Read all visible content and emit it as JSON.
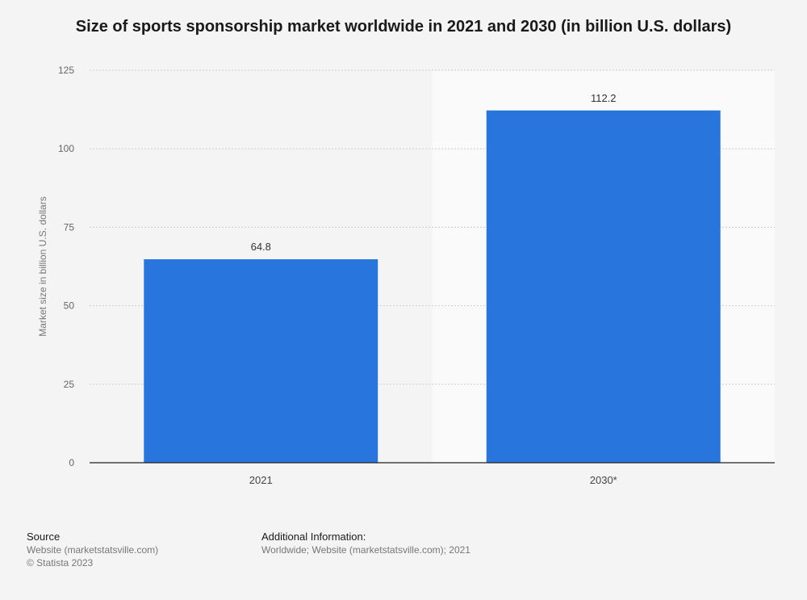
{
  "chart_data": {
    "type": "bar",
    "title": "Size of sports sponsorship market worldwide in 2021 and 2030 (in billion U.S. dollars)",
    "xlabel": "",
    "ylabel": "Market size in billion U.S. dollars",
    "categories": [
      "2021",
      "2030*"
    ],
    "values": [
      64.8,
      112.2
    ],
    "data_labels": [
      "64.8",
      "112.2"
    ],
    "ylim": [
      0,
      125
    ],
    "yticks": [
      0,
      25,
      50,
      75,
      100,
      125
    ],
    "grid": true,
    "highlight_forecast_category": "2030*",
    "legend": "none"
  },
  "colors": {
    "bar": "#2876dd",
    "background": "#f4f4f4",
    "forecast_band": "#fafafa",
    "grid": "#cccccc",
    "axis": "#222222"
  },
  "footer": {
    "source_heading": "Source",
    "source_line1": "Website (marketstatsville.com)",
    "source_line2": "© Statista 2023",
    "info_heading": "Additional Information:",
    "info_line1": "Worldwide; Website (marketstatsville.com); 2021"
  }
}
